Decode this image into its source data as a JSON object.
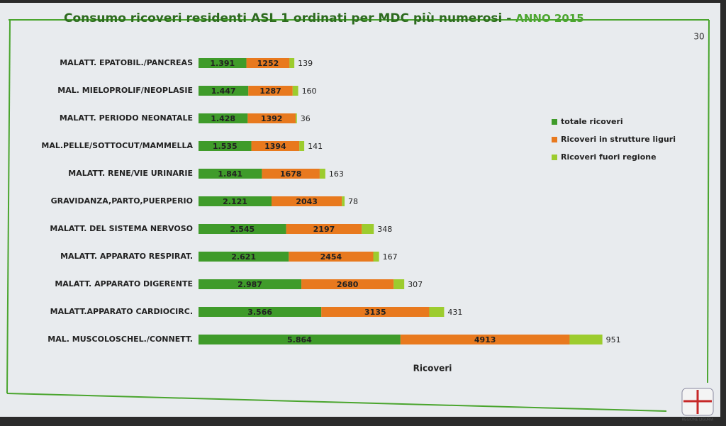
{
  "chart_data": {
    "type": "stacked-hbar",
    "title": "Consumo ricoveri residenti ASL 1  ordinati per MDC più numerosi - ",
    "subtitle": "ANNO 2015",
    "slide_number": "30",
    "x_label": "Ricoveri",
    "logo_text": "REGIONE LIGURIA",
    "categories": [
      "MALATT. EPATOBIL./PANCREAS",
      "MAL. MIELOPROLIF/NEOPLASIE",
      "MALATT. PERIODO NEONATALE",
      "MAL.PELLE/SOTTOCUT/MAMMELLA",
      "MALATT. RENE/VIE URINARIE",
      "GRAVIDANZA,PARTO,PUERPERIO",
      "MALATT. DEL SISTEMA NERVOSO",
      "MALATT. APPARATO RESPIRAT.",
      "MALATT. APPARATO DIGERENTE",
      "MALATT.APPARATO CARDIOCIRC.",
      "MAL. MUSCOLOSCHEL./CONNETT."
    ],
    "series": [
      {
        "name": "totale ricoveri",
        "color": "#3f9b2a",
        "values": [
          1391,
          1447,
          1428,
          1535,
          1841,
          2121,
          2545,
          2621,
          2987,
          3566,
          5864
        ],
        "value_labels": [
          "1.391",
          "1.447",
          "1.428",
          "1.535",
          "1.841",
          "2.121",
          "2.545",
          "2.621",
          "2.987",
          "3.566",
          "5.864"
        ]
      },
      {
        "name": "Ricoveri in strutture liguri",
        "color": "#e8791e",
        "values": [
          1252,
          1287,
          1392,
          1394,
          1678,
          2043,
          2197,
          2454,
          2680,
          3135,
          4913
        ]
      },
      {
        "name": "Ricoveri fuori regione",
        "color": "#9ccc2e",
        "values": [
          139,
          160,
          36,
          141,
          163,
          78,
          348,
          167,
          307,
          431,
          951
        ]
      }
    ],
    "xlim": [
      0,
      14000
    ],
    "legend": "right"
  }
}
